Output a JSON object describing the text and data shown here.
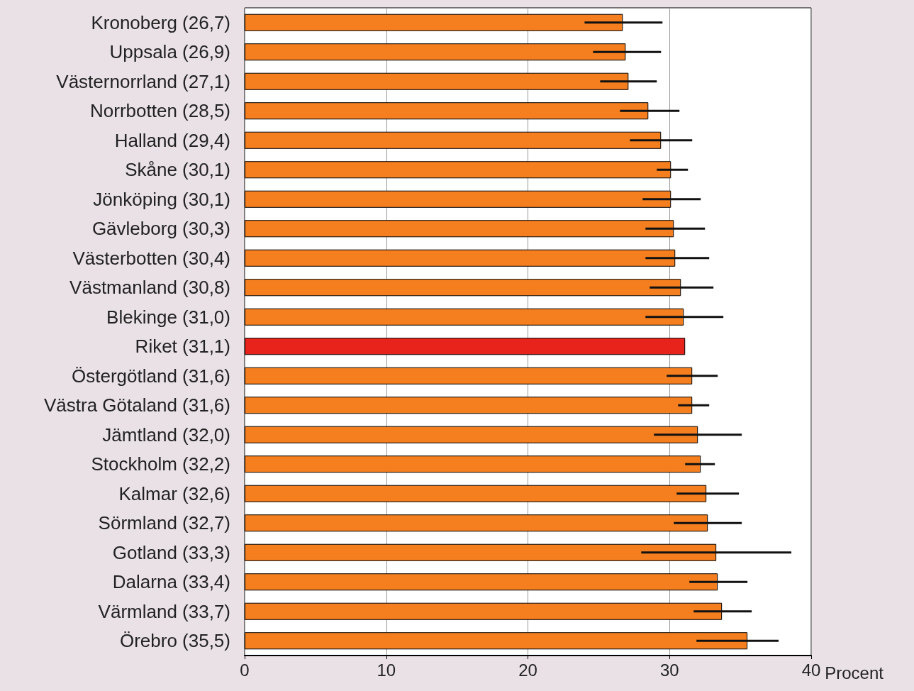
{
  "chart_data": {
    "type": "bar",
    "orientation": "horizontal",
    "xlabel": "Procent",
    "categories": [
      "Kronoberg (26,7)",
      "Uppsala (26,9)",
      "Västernorrland (27,1)",
      "Norrbotten (28,5)",
      "Halland (29,4)",
      "Skåne (30,1)",
      "Jönköping (30,1)",
      "Gävleborg (30,3)",
      "Västerbotten (30,4)",
      "Västmanland (30,8)",
      "Blekinge (31,0)",
      "Riket (31,1)",
      "Östergötland (31,6)",
      "Västra Götaland (31,6)",
      "Jämtland (32,0)",
      "Stockholm (32,2)",
      "Kalmar (32,6)",
      "Sörmland (32,7)",
      "Gotland (33,3)",
      "Dalarna (33,4)",
      "Värmland (33,7)",
      "Örebro (35,5)"
    ],
    "values": [
      26.7,
      26.9,
      27.1,
      28.5,
      29.4,
      30.1,
      30.1,
      30.3,
      30.4,
      30.8,
      31.0,
      31.1,
      31.6,
      31.6,
      32.0,
      32.2,
      32.6,
      32.7,
      33.3,
      33.4,
      33.7,
      35.5
    ],
    "colors": [
      "#f57f1f",
      "#f57f1f",
      "#f57f1f",
      "#f57f1f",
      "#f57f1f",
      "#f57f1f",
      "#f57f1f",
      "#f57f1f",
      "#f57f1f",
      "#f57f1f",
      "#f57f1f",
      "#e8231b",
      "#f57f1f",
      "#f57f1f",
      "#f57f1f",
      "#f57f1f",
      "#f57f1f",
      "#f57f1f",
      "#f57f1f",
      "#f57f1f",
      "#f57f1f",
      "#f57f1f"
    ],
    "errors": [
      [
        24.0,
        29.5
      ],
      [
        24.6,
        29.4
      ],
      [
        25.1,
        29.1
      ],
      [
        26.5,
        30.7
      ],
      [
        27.2,
        31.6
      ],
      [
        29.1,
        31.3
      ],
      [
        28.1,
        32.2
      ],
      [
        28.3,
        32.5
      ],
      [
        28.3,
        32.8
      ],
      [
        28.6,
        33.1
      ],
      [
        28.3,
        33.8
      ],
      null,
      [
        29.8,
        33.4
      ],
      [
        30.6,
        32.8
      ],
      [
        28.9,
        35.1
      ],
      [
        31.1,
        33.2
      ],
      [
        30.5,
        34.9
      ],
      [
        30.3,
        35.1
      ],
      [
        28.0,
        38.6
      ],
      [
        31.4,
        35.5
      ],
      [
        31.7,
        35.8
      ],
      [
        31.9,
        37.7
      ]
    ],
    "xlim": [
      0,
      40
    ],
    "xticks": [
      0,
      10,
      20,
      30,
      40
    ],
    "grid": "x"
  }
}
